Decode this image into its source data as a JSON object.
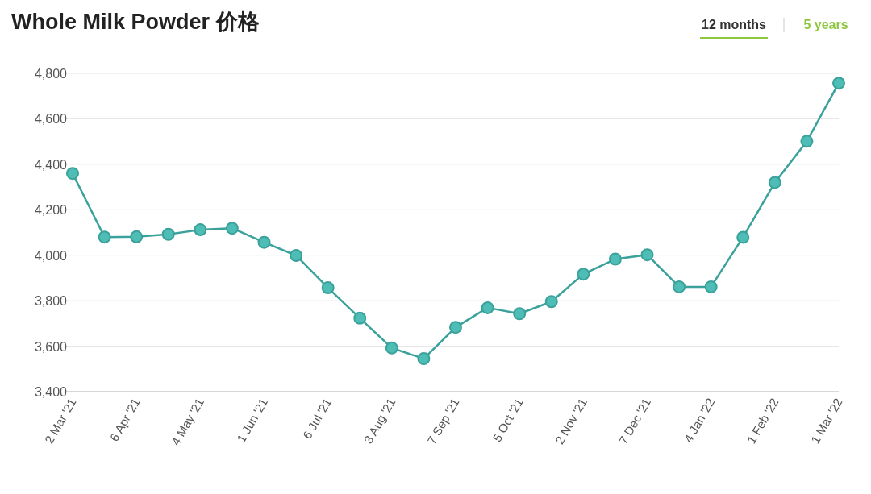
{
  "chart_data": {
    "type": "line",
    "title": "Whole Milk Powder 价格",
    "annotations": [
      "12 months",
      "5 years"
    ],
    "categories": [
      "2 Mar '21",
      null,
      "6 Apr '21",
      null,
      "4 May '21",
      null,
      "1 Jun '21",
      null,
      "6 Jul '21",
      null,
      "3 Aug '21",
      null,
      "7 Sep '21",
      null,
      "5 Oct '21",
      null,
      "2 Nov '21",
      null,
      "7 Dec '21",
      null,
      "4 Jan '22",
      null,
      "1 Feb '22",
      null,
      "1 Mar '22"
    ],
    "series": [
      {
        "color": "#3aa19b",
        "values": [
          4360,
          4080,
          4081,
          4092,
          4112,
          4119,
          4057,
          3999,
          3857,
          3723,
          3592,
          3545,
          3683,
          3769,
          3743,
          3796,
          3917,
          3983,
          4002,
          3861,
          3861,
          4079,
          4320,
          4501,
          4757
        ]
      }
    ],
    "ylim": [
      3400,
      4800
    ],
    "yticks": [
      {
        "value": 3400,
        "label": "3,400"
      },
      {
        "value": 3600,
        "label": "3,600"
      },
      {
        "value": 3800,
        "label": "3,800"
      },
      {
        "value": 4000,
        "label": "4,000"
      },
      {
        "value": 4200,
        "label": "4,200"
      },
      {
        "value": 4400,
        "label": "4,400"
      },
      {
        "value": 4600,
        "label": "4,600"
      },
      {
        "value": 4800,
        "label": "4,800"
      }
    ],
    "grid": "y",
    "marker": "circle",
    "line_style": "solid"
  }
}
